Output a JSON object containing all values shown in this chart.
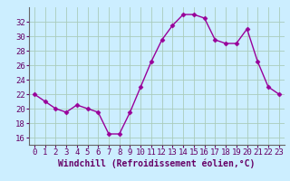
{
  "x": [
    0,
    1,
    2,
    3,
    4,
    5,
    6,
    7,
    8,
    9,
    10,
    11,
    12,
    13,
    14,
    15,
    16,
    17,
    18,
    19,
    20,
    21,
    22,
    23
  ],
  "y": [
    22.0,
    21.0,
    20.0,
    19.5,
    20.5,
    20.0,
    19.5,
    16.5,
    16.5,
    19.5,
    23.0,
    26.5,
    29.5,
    31.5,
    33.0,
    33.0,
    32.5,
    29.5,
    29.0,
    29.0,
    31.0,
    26.5,
    23.0,
    22.0
  ],
  "line_color": "#990099",
  "marker": "D",
  "markersize": 2.5,
  "linewidth": 1.0,
  "bg_color": "#cceeff",
  "grid_color": "#aaccbb",
  "xlabel": "Windchill (Refroidissement éolien,°C)",
  "xlabel_fontsize": 7,
  "xlabel_color": "#660066",
  "xtick_labels": [
    "0",
    "1",
    "2",
    "3",
    "4",
    "5",
    "6",
    "7",
    "8",
    "9",
    "10",
    "11",
    "12",
    "13",
    "14",
    "15",
    "16",
    "17",
    "18",
    "19",
    "20",
    "21",
    "22",
    "23"
  ],
  "ytick_values": [
    16,
    18,
    20,
    22,
    24,
    26,
    28,
    30,
    32
  ],
  "ylim": [
    15.0,
    34.0
  ],
  "xlim": [
    -0.5,
    23.5
  ],
  "tick_fontsize": 6.5,
  "tick_color": "#660066"
}
